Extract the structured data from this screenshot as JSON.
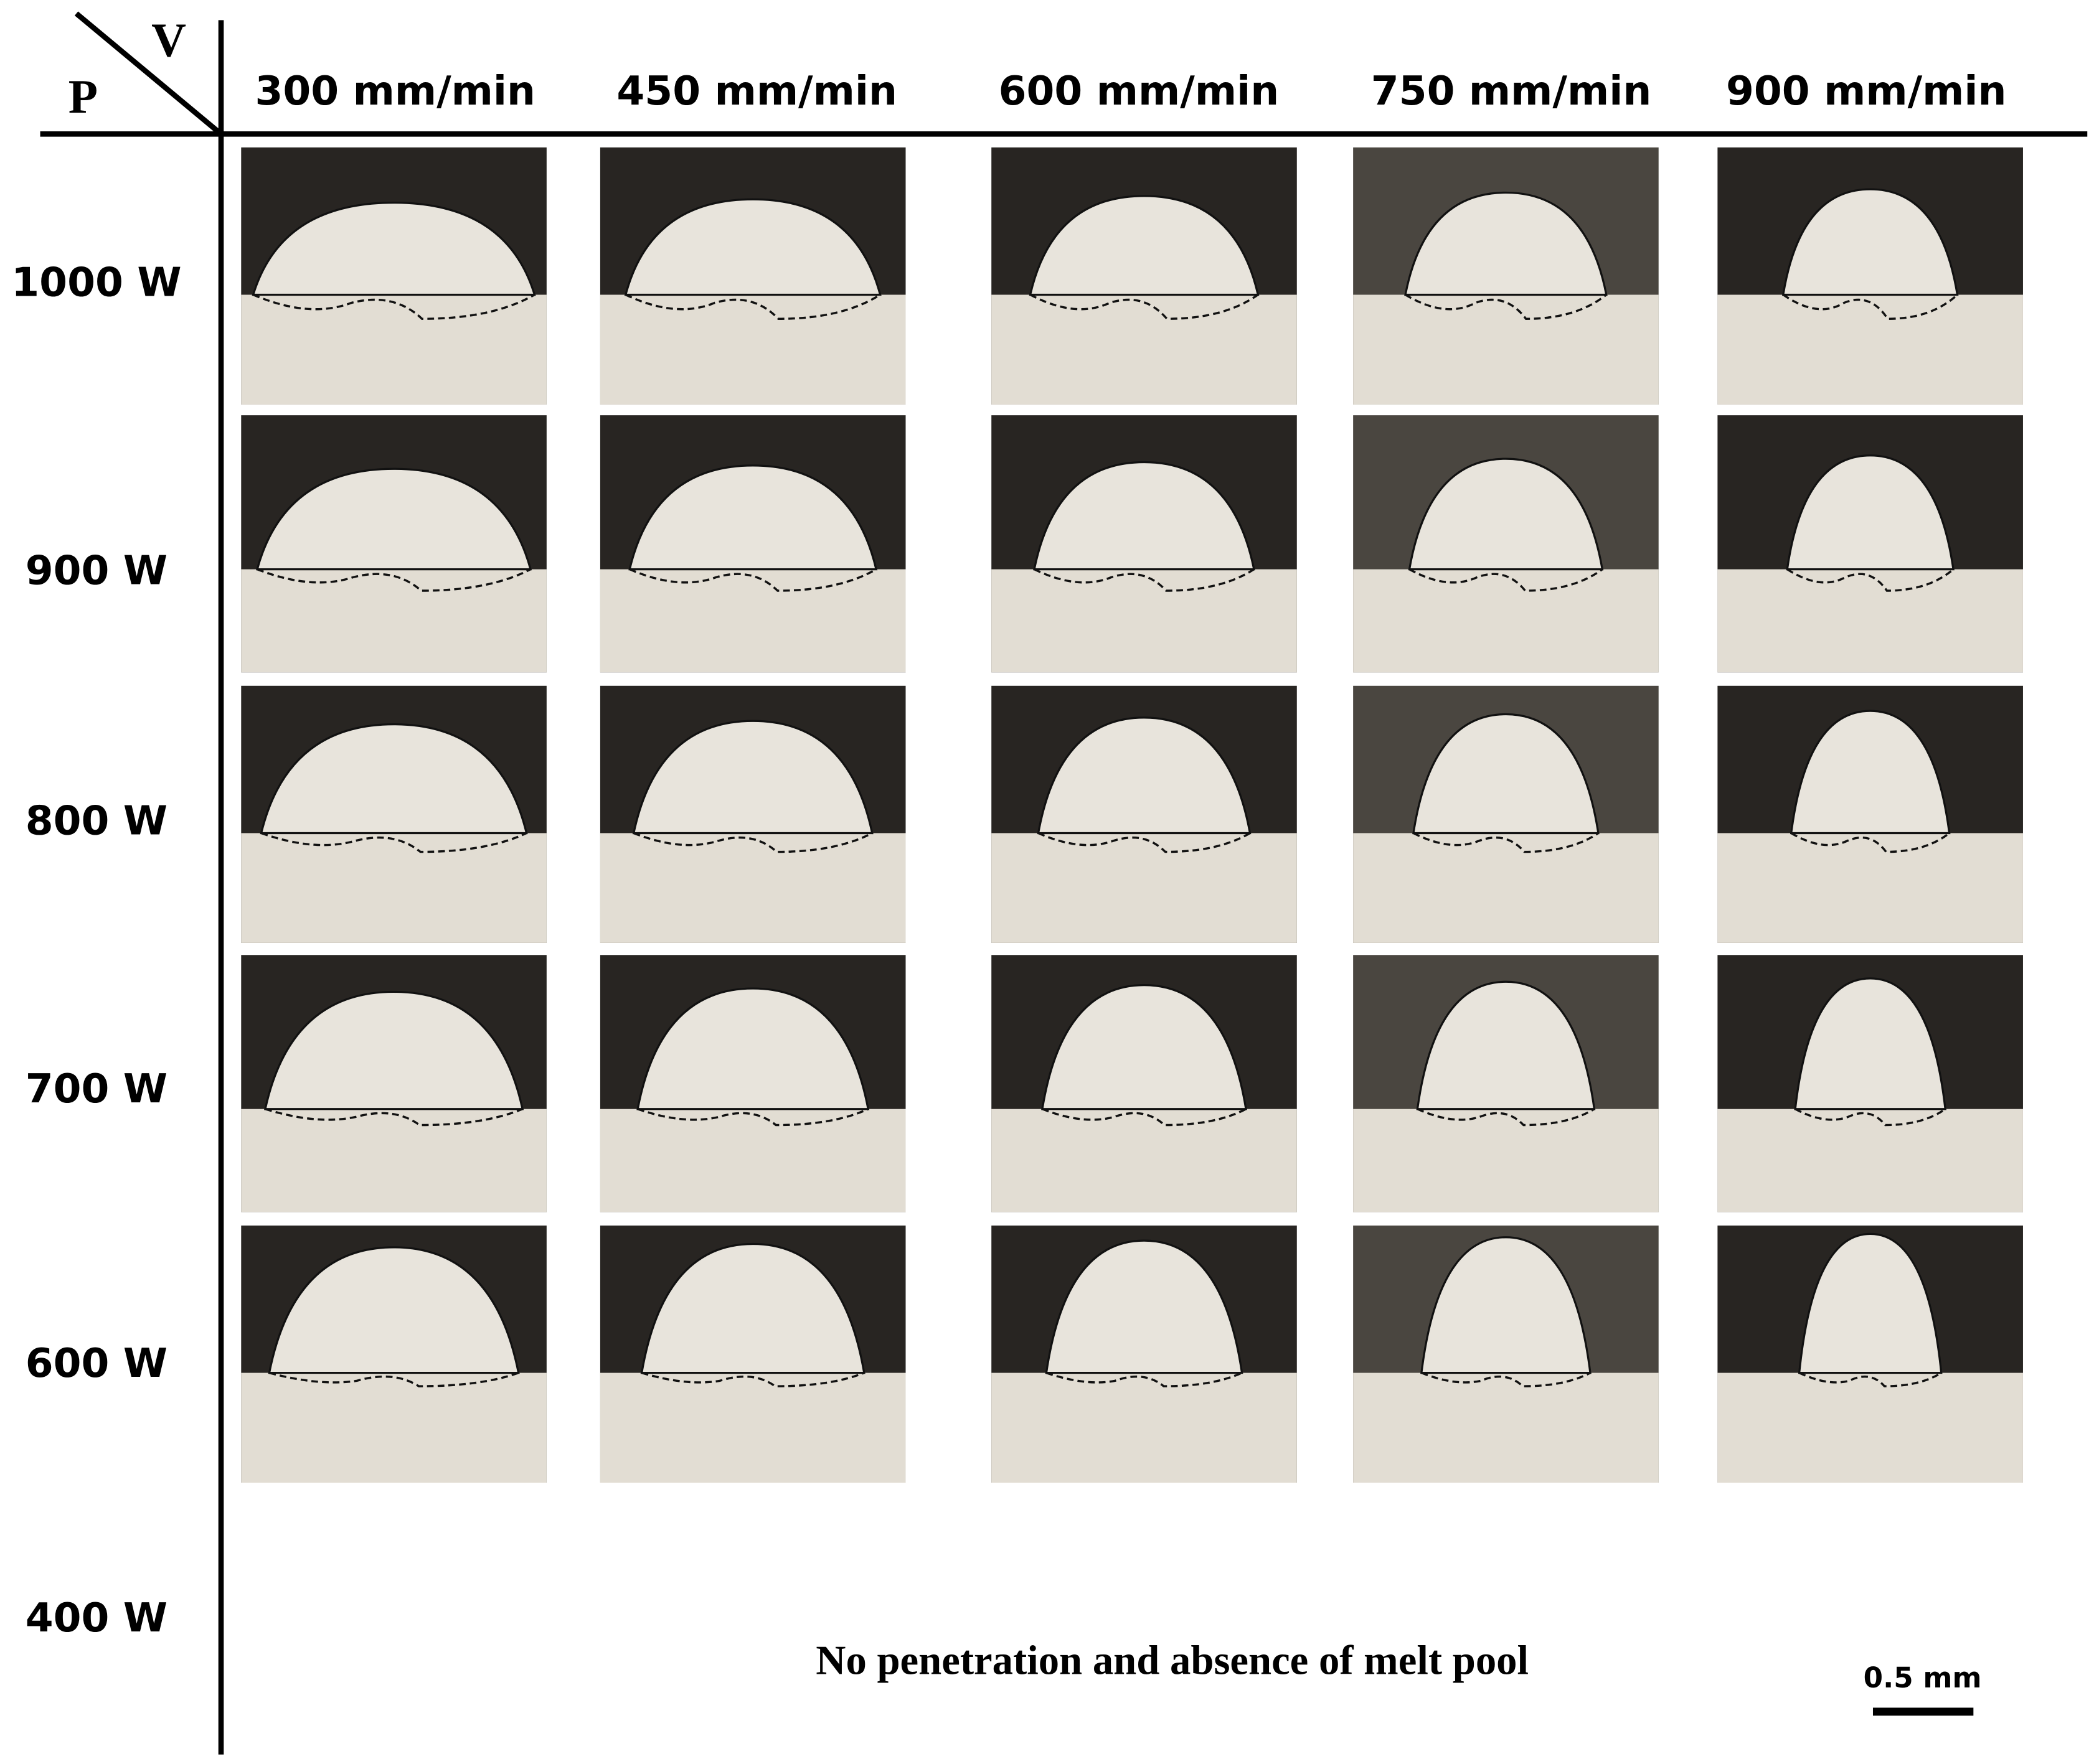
{
  "header": {
    "row_axis": "P",
    "column_axis": "V"
  },
  "columns": [
    "300 mm/min",
    "450 mm/min",
    "600 mm/min",
    "750 mm/min",
    "900 mm/min"
  ],
  "rows": [
    "1000 W",
    "900 W",
    "800 W",
    "700 W",
    "600 W",
    "400 W"
  ],
  "note": "No penetration and absence of melt pool",
  "scale_bar": "0.5 mm"
}
